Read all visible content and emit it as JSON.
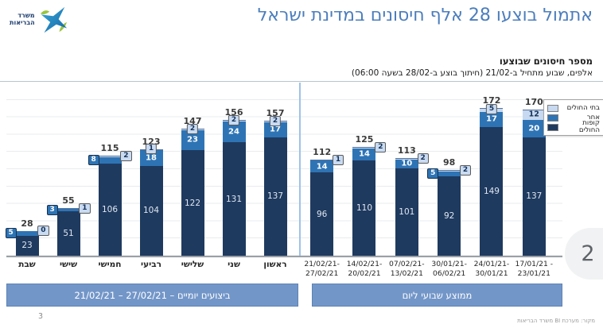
{
  "page": {
    "title": "אתמול בוצעו 28 אלף חיסונים במדינת ישראל",
    "logo": {
      "line1": "משרד",
      "line2": "הבריאות"
    },
    "page_number_badge": "2",
    "slide_number": "3",
    "source": "מקור: מערכת BI משרד הבריאות"
  },
  "chart_header": {
    "title": "מספר חיסונים שבוצעו",
    "subtitle": "אלפים, שבוע מתחיל ב-21/02 (חיתוך בוצע ב-28/02 בשעה 06:00)"
  },
  "legend": {
    "items": [
      {
        "label": "בתי החולים",
        "color": "#c7d9f0"
      },
      {
        "label": "אחר",
        "color": "#2e74b5"
      },
      {
        "label": "קופות החולים",
        "color": "#1f3a5f"
      }
    ]
  },
  "chart_data": {
    "type": "bar",
    "stacked": true,
    "unit": "אלפים",
    "ylim": [
      0,
      200
    ],
    "gridline_step": 20,
    "grid": true,
    "legend_position": "top-right",
    "series_names": {
      "kupot": "קופות החולים",
      "other": "אחר",
      "hospitals": "בתי החולים"
    },
    "colors": {
      "kupot": "#1f3a5f",
      "other": "#2e74b5",
      "hospitals": "#c7d9f0"
    },
    "groups": [
      {
        "banner": "ביצועים יומיים – 21/02/21‎ – ‎27/02/21",
        "bars": [
          {
            "label": "שבת",
            "total": 28,
            "kupot": 23,
            "other": 5,
            "hospitals": 0,
            "other_label": "chip-left",
            "hospitals_label": "chip-right"
          },
          {
            "label": "שישי",
            "total": 55,
            "kupot": 51,
            "other": 3,
            "hospitals": 1,
            "other_label": "chip-left",
            "hospitals_label": "chip-right"
          },
          {
            "label": "חמישי",
            "total": 115,
            "kupot": 106,
            "other": 8,
            "hospitals": 2,
            "other_label": "chip-left",
            "hospitals_label": "chip-right"
          },
          {
            "label": "רביעי",
            "total": 123,
            "kupot": 104,
            "other": 18,
            "hospitals": 1,
            "other_label": "in",
            "hospitals_label": "chip-top"
          },
          {
            "label": "שלישי",
            "total": 147,
            "kupot": 122,
            "other": 23,
            "hospitals": 2,
            "other_label": "in",
            "hospitals_label": "chip-top"
          },
          {
            "label": "שני",
            "total": 156,
            "kupot": 131,
            "other": 24,
            "hospitals": 2,
            "other_label": "in",
            "hospitals_label": "chip-top"
          },
          {
            "label": "ראשון",
            "total": 157,
            "kupot": 137,
            "other": 17,
            "hospitals": 2,
            "other_label": "in",
            "hospitals_label": "chip-top"
          }
        ]
      },
      {
        "banner": "ממוצע שבועי ליום",
        "bars": [
          {
            "label": "21/02/21-\n27/02/21",
            "total": 112,
            "kupot": 96,
            "other": 14,
            "hospitals": 1,
            "other_label": "in",
            "hospitals_label": "chip-right"
          },
          {
            "label": "14/02/21-\n20/02/21",
            "total": 125,
            "kupot": 110,
            "other": 14,
            "hospitals": 2,
            "other_label": "in",
            "hospitals_label": "chip-right"
          },
          {
            "label": "07/02/21-\n13/02/21",
            "total": 113,
            "kupot": 101,
            "other": 10,
            "hospitals": 2,
            "other_label": "in",
            "hospitals_label": "chip-right"
          },
          {
            "label": "30/01/21-\n06/02/21",
            "total": 98,
            "kupot": 92,
            "other": 5,
            "hospitals": 2,
            "other_label": "chip-left",
            "hospitals_label": "chip-right"
          },
          {
            "label": "24/01/21-\n30/01/21",
            "total": 172,
            "kupot": 149,
            "other": 17,
            "hospitals": 5,
            "other_label": "in",
            "hospitals_label": "chip-top"
          },
          {
            "label": "17/01/21 -\n23/01/21",
            "total": 170,
            "kupot": 137,
            "other": 20,
            "hospitals": 12,
            "other_label": "in",
            "hospitals_label": "in"
          }
        ]
      }
    ]
  }
}
